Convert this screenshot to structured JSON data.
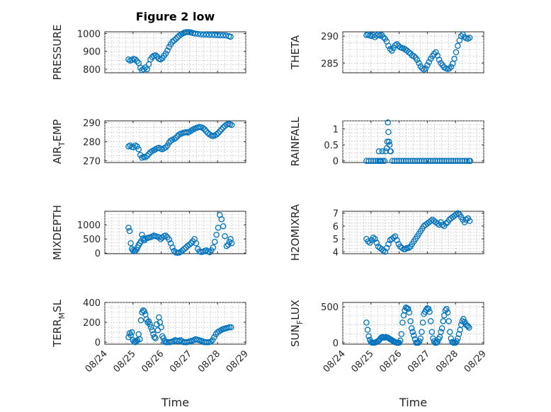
{
  "chart_data": [
    {
      "type": "scatter",
      "title": "Figure 2 low",
      "ylabel_main": "PRESSURE",
      "ylabel_sub": "",
      "xlabel": "",
      "ylim": [
        780,
        1010
      ],
      "yticks": [
        800,
        900,
        1000
      ],
      "xticks": [
        "08/24",
        "08/25",
        "08/26",
        "08/27",
        "08/28",
        "08/29"
      ],
      "show_xticklabels": false,
      "x": [
        24.84,
        24.9,
        24.96,
        25.02,
        25.08,
        25.14,
        25.2,
        25.26,
        25.32,
        25.38,
        25.44,
        25.5,
        25.56,
        25.62,
        25.68,
        25.74,
        25.8,
        25.86,
        25.92,
        25.98,
        26.04,
        26.1,
        26.16,
        26.22,
        26.28,
        26.34,
        26.4,
        26.46,
        26.52,
        26.58,
        26.64,
        26.7,
        26.76,
        26.82,
        26.88,
        26.94,
        27.0,
        27.06,
        27.12,
        27.2,
        27.3,
        27.4,
        27.5,
        27.6,
        27.7,
        27.8,
        27.9,
        28.0,
        28.1,
        28.2,
        28.3,
        28.4,
        28.46
      ],
      "y": [
        855,
        848,
        852,
        858,
        855,
        845,
        835,
        808,
        795,
        800,
        810,
        800,
        828,
        855,
        868,
        875,
        878,
        870,
        858,
        855,
        862,
        875,
        888,
        905,
        925,
        940,
        955,
        962,
        970,
        980,
        988,
        995,
        1000,
        1005,
        1008,
        1008,
        1008,
        1006,
        1003,
        1000,
        998,
        996,
        995,
        994,
        993,
        993,
        992,
        991,
        990,
        990,
        989,
        985,
        982
      ]
    },
    {
      "type": "scatter",
      "title": "",
      "ylabel_main": "THETA",
      "ylabel_sub": "",
      "xlabel": "",
      "ylim": [
        283.2,
        290.8
      ],
      "yticks": [
        285,
        290
      ],
      "xticks": [
        "08/24",
        "08/25",
        "08/26",
        "08/27",
        "08/28",
        "08/29"
      ],
      "show_xticklabels": false,
      "x": [
        24.84,
        24.9,
        24.96,
        25.02,
        25.08,
        25.14,
        25.2,
        25.26,
        25.32,
        25.38,
        25.44,
        25.5,
        25.56,
        25.62,
        25.68,
        25.74,
        25.8,
        25.86,
        25.92,
        25.98,
        26.04,
        26.1,
        26.16,
        26.22,
        26.28,
        26.34,
        26.4,
        26.46,
        26.52,
        26.58,
        26.64,
        26.7,
        26.76,
        26.82,
        26.88,
        26.94,
        27.0,
        27.06,
        27.12,
        27.18,
        27.24,
        27.3,
        27.36,
        27.42,
        27.48,
        27.54,
        27.6,
        27.66,
        27.72,
        27.78,
        27.84,
        27.9,
        27.96,
        28.02,
        28.08,
        28.14,
        28.2,
        28.26,
        28.32,
        28.38,
        28.44,
        28.5
      ],
      "y": [
        290.2,
        290.3,
        290.1,
        290.0,
        290.2,
        289.8,
        290.1,
        290.3,
        290.1,
        290.2,
        289.8,
        289.5,
        289.0,
        288.2,
        287.6,
        287.3,
        287.8,
        288.3,
        288.5,
        288.2,
        287.9,
        287.8,
        287.7,
        287.5,
        287.3,
        287.0,
        286.8,
        286.4,
        286.3,
        286.0,
        285.6,
        285.0,
        284.4,
        284.0,
        283.8,
        284.0,
        284.6,
        285.2,
        285.8,
        286.3,
        286.7,
        287.0,
        286.4,
        285.6,
        285.0,
        284.6,
        284.2,
        284.0,
        283.9,
        284.0,
        284.3,
        284.9,
        285.8,
        287.0,
        288.2,
        289.2,
        290.0,
        290.3,
        289.8,
        289.6,
        289.5,
        289.7
      ]
    },
    {
      "type": "scatter",
      "title": "",
      "ylabel_main": "AIR",
      "ylabel_sub": "T",
      "ylabel_tail": "EMP",
      "xlabel": "",
      "ylim": [
        269,
        291
      ],
      "yticks": [
        270,
        280,
        290
      ],
      "xticks": [
        "08/24",
        "08/25",
        "08/26",
        "08/27",
        "08/28",
        "08/29"
      ],
      "show_xticklabels": false,
      "x": [
        24.84,
        24.9,
        24.96,
        25.02,
        25.08,
        25.14,
        25.2,
        25.26,
        25.32,
        25.38,
        25.44,
        25.5,
        25.56,
        25.62,
        25.68,
        25.74,
        25.8,
        25.86,
        25.92,
        25.98,
        26.04,
        26.1,
        26.16,
        26.22,
        26.28,
        26.34,
        26.4,
        26.46,
        26.52,
        26.58,
        26.64,
        26.7,
        26.76,
        26.82,
        26.88,
        26.94,
        27.0,
        27.06,
        27.12,
        27.18,
        27.24,
        27.3,
        27.36,
        27.42,
        27.48,
        27.54,
        27.6,
        27.66,
        27.72,
        27.78,
        27.84,
        27.9,
        27.96,
        28.02,
        28.08,
        28.14,
        28.2,
        28.26,
        28.32,
        28.38,
        28.44,
        28.5
      ],
      "y": [
        277.5,
        278.0,
        277.2,
        277.0,
        278.0,
        277.5,
        276.0,
        273.0,
        271.5,
        272.0,
        271.8,
        272.5,
        273.5,
        274.5,
        275.0,
        275.5,
        276.0,
        276.5,
        276.8,
        276.3,
        276.0,
        276.5,
        277.0,
        278.0,
        279.5,
        280.5,
        281.0,
        281.5,
        282.0,
        283.0,
        283.8,
        284.2,
        284.5,
        284.8,
        285.0,
        284.8,
        285.2,
        285.8,
        286.3,
        286.8,
        287.2,
        287.5,
        287.8,
        287.6,
        287.2,
        286.5,
        285.5,
        284.5,
        283.8,
        283.2,
        283.0,
        283.2,
        283.8,
        284.5,
        285.5,
        286.5,
        287.5,
        288.3,
        289.0,
        289.4,
        289.2,
        288.8
      ]
    },
    {
      "type": "scatter",
      "title": "",
      "ylabel_main": "RAINFALL",
      "ylabel_sub": "",
      "xlabel": "",
      "ylim": [
        -0.05,
        1.25
      ],
      "yticks": [
        0,
        0.5,
        1
      ],
      "xticks": [
        "08/24",
        "08/25",
        "08/26",
        "08/27",
        "08/28",
        "08/29"
      ],
      "show_xticklabels": false,
      "x": [
        24.84,
        24.92,
        25.0,
        25.08,
        25.16,
        25.24,
        25.3,
        25.36,
        25.42,
        25.48,
        25.52,
        25.56,
        25.58,
        25.6,
        25.62,
        25.64,
        25.66,
        25.68,
        25.7,
        25.76,
        25.84,
        25.92,
        26.0,
        26.08,
        26.16,
        26.24,
        26.32,
        26.4,
        26.48,
        26.56,
        26.64,
        26.72,
        26.8,
        26.88,
        26.96,
        27.04,
        27.12,
        27.2,
        27.28,
        27.36,
        27.44,
        27.52,
        27.6,
        27.68,
        27.76,
        27.84,
        27.92,
        28.0,
        28.08,
        28.16,
        28.24,
        28.32,
        28.4,
        28.48,
        28.52,
        25.28,
        25.4,
        25.34
      ],
      "y": [
        0,
        0,
        0,
        0,
        0,
        0,
        0,
        0,
        0,
        0,
        0.3,
        0.4,
        0.6,
        1.2,
        0.9,
        0.6,
        0.5,
        0.3,
        0.3,
        0,
        0,
        0,
        0,
        0,
        0,
        0,
        0,
        0,
        0,
        0,
        0,
        0,
        0,
        0,
        0,
        0,
        0,
        0,
        0,
        0,
        0,
        0,
        0,
        0,
        0,
        0,
        0,
        0,
        0,
        0,
        0,
        0,
        0,
        0,
        0,
        0.3,
        0.3,
        0
      ]
    },
    {
      "type": "scatter",
      "title": "",
      "ylabel_main": "MIXDEPTH",
      "ylabel_sub": "",
      "xlabel": "",
      "ylim": [
        -20,
        1480
      ],
      "yticks": [
        0,
        500,
        1000
      ],
      "xticks": [
        "08/24",
        "08/25",
        "08/26",
        "08/27",
        "08/28",
        "08/29"
      ],
      "show_xticklabels": false,
      "x": [
        24.84,
        24.88,
        24.92,
        24.96,
        25.0,
        25.04,
        25.08,
        25.12,
        25.16,
        25.2,
        25.24,
        25.28,
        25.32,
        25.36,
        25.4,
        25.44,
        25.5,
        25.56,
        25.62,
        25.68,
        25.74,
        25.8,
        25.86,
        25.92,
        25.98,
        26.04,
        26.1,
        26.16,
        26.22,
        26.28,
        26.34,
        26.4,
        26.46,
        26.52,
        26.58,
        26.64,
        26.7,
        26.76,
        26.82,
        26.88,
        26.94,
        27.0,
        27.06,
        27.12,
        27.18,
        27.24,
        27.3,
        27.36,
        27.42,
        27.48,
        27.54,
        27.6,
        27.66,
        27.72,
        27.78,
        27.84,
        27.9,
        27.96,
        28.02,
        28.08,
        28.14,
        28.2,
        28.26,
        28.32,
        28.38,
        28.42,
        28.46,
        28.5
      ],
      "y": [
        900,
        780,
        350,
        150,
        100,
        60,
        80,
        120,
        200,
        280,
        350,
        420,
        650,
        520,
        450,
        500,
        530,
        550,
        560,
        590,
        620,
        600,
        580,
        560,
        500,
        550,
        600,
        620,
        560,
        480,
        350,
        200,
        80,
        20,
        10,
        20,
        50,
        100,
        150,
        200,
        260,
        300,
        350,
        420,
        500,
        350,
        150,
        60,
        40,
        50,
        80,
        100,
        60,
        30,
        100,
        200,
        400,
        650,
        900,
        1350,
        1200,
        950,
        600,
        250,
        300,
        400,
        500,
        350
      ]
    },
    {
      "type": "scatter",
      "title": "",
      "ylabel_main": "H2OMIXRA",
      "ylabel_sub": "",
      "xlabel": "",
      "ylim": [
        3.85,
        7.15
      ],
      "yticks": [
        4,
        5,
        6,
        7
      ],
      "xticks": [
        "08/24",
        "08/25",
        "08/26",
        "08/27",
        "08/28",
        "08/29"
      ],
      "show_xticklabels": false,
      "x": [
        24.84,
        24.9,
        24.96,
        25.02,
        25.08,
        25.14,
        25.2,
        25.26,
        25.32,
        25.38,
        25.44,
        25.5,
        25.56,
        25.62,
        25.68,
        25.74,
        25.8,
        25.86,
        25.92,
        25.98,
        26.04,
        26.1,
        26.16,
        26.22,
        26.28,
        26.34,
        26.4,
        26.46,
        26.52,
        26.58,
        26.64,
        26.7,
        26.76,
        26.82,
        26.88,
        26.94,
        27.0,
        27.06,
        27.12,
        27.18,
        27.24,
        27.3,
        27.36,
        27.42,
        27.48,
        27.54,
        27.6,
        27.66,
        27.72,
        27.78,
        27.84,
        27.9,
        27.96,
        28.02,
        28.08,
        28.14,
        28.2,
        28.26,
        28.32,
        28.38,
        28.44,
        28.5
      ],
      "y": [
        5.0,
        4.8,
        4.7,
        4.9,
        5.1,
        5.0,
        4.7,
        4.4,
        4.3,
        4.2,
        4.1,
        4.0,
        4.3,
        4.6,
        4.9,
        5.0,
        5.1,
        5.2,
        4.9,
        4.6,
        4.4,
        4.3,
        4.2,
        4.2,
        4.3,
        4.3,
        4.4,
        4.6,
        4.8,
        5.0,
        5.2,
        5.4,
        5.6,
        5.8,
        6.0,
        6.1,
        6.2,
        6.3,
        6.4,
        6.5,
        6.4,
        6.3,
        6.2,
        6.1,
        6.3,
        6.1,
        6.0,
        6.2,
        6.3,
        6.5,
        6.6,
        6.7,
        6.8,
        6.9,
        7.0,
        6.9,
        6.7,
        6.5,
        6.3,
        6.5,
        6.6,
        6.4
      ]
    },
    {
      "type": "scatter",
      "title": "",
      "ylabel_main": "TERR",
      "ylabel_sub": "M",
      "ylabel_tail": "SL",
      "xlabel": "Time",
      "ylim": [
        -20,
        400
      ],
      "yticks": [
        0,
        200,
        400
      ],
      "xticks": [
        "08/24",
        "08/25",
        "08/26",
        "08/27",
        "08/28",
        "08/29"
      ],
      "show_xticklabels": true,
      "x": [
        24.84,
        24.88,
        24.92,
        24.96,
        25.0,
        25.04,
        25.08,
        25.12,
        25.16,
        25.2,
        25.24,
        25.28,
        25.32,
        25.36,
        25.4,
        25.44,
        25.48,
        25.52,
        25.56,
        25.6,
        25.64,
        25.68,
        25.72,
        25.76,
        25.8,
        25.84,
        25.88,
        25.92,
        25.96,
        26.0,
        26.04,
        26.08,
        26.12,
        26.16,
        26.2,
        26.26,
        26.32,
        26.38,
        26.44,
        26.5,
        26.56,
        26.62,
        26.68,
        26.74,
        26.8,
        26.86,
        26.92,
        26.98,
        27.04,
        27.1,
        27.16,
        27.22,
        27.28,
        27.34,
        27.4,
        27.46,
        27.52,
        27.58,
        27.64,
        27.7,
        27.76,
        27.82,
        27.88,
        27.94,
        28.0,
        28.06,
        28.12,
        28.18,
        28.24,
        28.3,
        28.36,
        28.42,
        28.48
      ],
      "y": [
        50,
        90,
        70,
        100,
        20,
        5,
        0,
        10,
        20,
        80,
        30,
        220,
        300,
        320,
        310,
        280,
        230,
        200,
        210,
        180,
        150,
        120,
        80,
        50,
        40,
        180,
        120,
        250,
        200,
        150,
        60,
        40,
        10,
        0,
        0,
        0,
        0,
        5,
        10,
        20,
        15,
        10,
        20,
        10,
        0,
        0,
        0,
        5,
        10,
        15,
        20,
        30,
        25,
        20,
        15,
        10,
        0,
        0,
        0,
        0,
        5,
        20,
        50,
        80,
        100,
        110,
        120,
        130,
        135,
        140,
        145,
        150,
        150
      ]
    },
    {
      "type": "scatter",
      "title": "",
      "ylabel_main": "SUN",
      "ylabel_sub": "F",
      "ylabel_tail": "LUX",
      "xlabel": "Time",
      "ylim": [
        -20,
        560
      ],
      "yticks": [
        0,
        500
      ],
      "xticks": [
        "08/24",
        "08/25",
        "08/26",
        "08/27",
        "08/28",
        "08/29"
      ],
      "show_xticklabels": true,
      "x": [
        24.84,
        24.88,
        24.92,
        24.96,
        25.0,
        25.04,
        25.08,
        25.12,
        25.16,
        25.2,
        25.24,
        25.28,
        25.32,
        25.36,
        25.4,
        25.44,
        25.48,
        25.52,
        25.56,
        25.6,
        25.64,
        25.68,
        25.72,
        25.76,
        25.8,
        25.84,
        25.88,
        25.92,
        25.96,
        26.0,
        26.04,
        26.08,
        26.12,
        26.16,
        26.2,
        26.24,
        26.28,
        26.32,
        26.36,
        26.4,
        26.44,
        26.48,
        26.52,
        26.56,
        26.6,
        26.64,
        26.68,
        26.72,
        26.76,
        26.8,
        26.84,
        26.88,
        26.92,
        26.96,
        27.0,
        27.04,
        27.08,
        27.12,
        27.16,
        27.2,
        27.24,
        27.28,
        27.32,
        27.36,
        27.4,
        27.44,
        27.48,
        27.52,
        27.56,
        27.6,
        27.64,
        27.68,
        27.72,
        27.76,
        27.8,
        27.84,
        27.88,
        27.92,
        27.96,
        28.0,
        28.04,
        28.08,
        28.12,
        28.16,
        28.2,
        28.24,
        28.28,
        28.32,
        28.36,
        28.4,
        28.44,
        28.48
      ],
      "y": [
        280,
        180,
        90,
        40,
        10,
        0,
        0,
        0,
        5,
        10,
        20,
        30,
        50,
        70,
        80,
        75,
        70,
        80,
        75,
        70,
        60,
        50,
        40,
        30,
        20,
        10,
        5,
        0,
        0,
        0,
        30,
        120,
        280,
        380,
        450,
        490,
        480,
        470,
        420,
        300,
        200,
        150,
        100,
        50,
        0,
        0,
        0,
        20,
        60,
        150,
        280,
        400,
        430,
        460,
        480,
        470,
        430,
        300,
        150,
        60,
        20,
        0,
        0,
        10,
        50,
        80,
        150,
        200,
        300,
        380,
        450,
        470,
        420,
        300,
        150,
        60,
        10,
        0,
        0,
        0,
        20,
        60,
        120,
        180,
        250,
        300,
        330,
        290,
        260,
        240,
        230,
        210
      ]
    }
  ]
}
